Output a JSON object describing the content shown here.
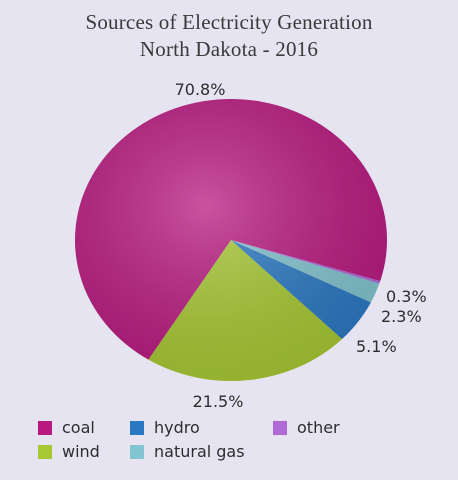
{
  "chart_data": {
    "type": "pie",
    "title": "Sources of Electricity Generation",
    "subtitle": "North Dakota - 2016",
    "slices": [
      {
        "name": "coal",
        "value": 70.8,
        "label": "70.8%",
        "color": "#b8197f"
      },
      {
        "name": "wind",
        "value": 21.5,
        "label": "21.5%",
        "color": "#a6c832"
      },
      {
        "name": "hydro",
        "value": 5.1,
        "label": "5.1%",
        "color": "#2a78c2"
      },
      {
        "name": "natural gas",
        "value": 2.3,
        "label": "2.3%",
        "color": "#82c4cf"
      },
      {
        "name": "other",
        "value": 0.3,
        "label": "0.3%",
        "color": "#b06ad8"
      }
    ],
    "legend": [
      {
        "label": "coal",
        "color": "#b8197f"
      },
      {
        "label": "hydro",
        "color": "#2a78c2"
      },
      {
        "label": "other",
        "color": "#b06ad8"
      },
      {
        "label": "wind",
        "color": "#a6c832"
      },
      {
        "label": "natural gas",
        "color": "#82c4cf"
      }
    ],
    "legend_position": "bottom"
  }
}
